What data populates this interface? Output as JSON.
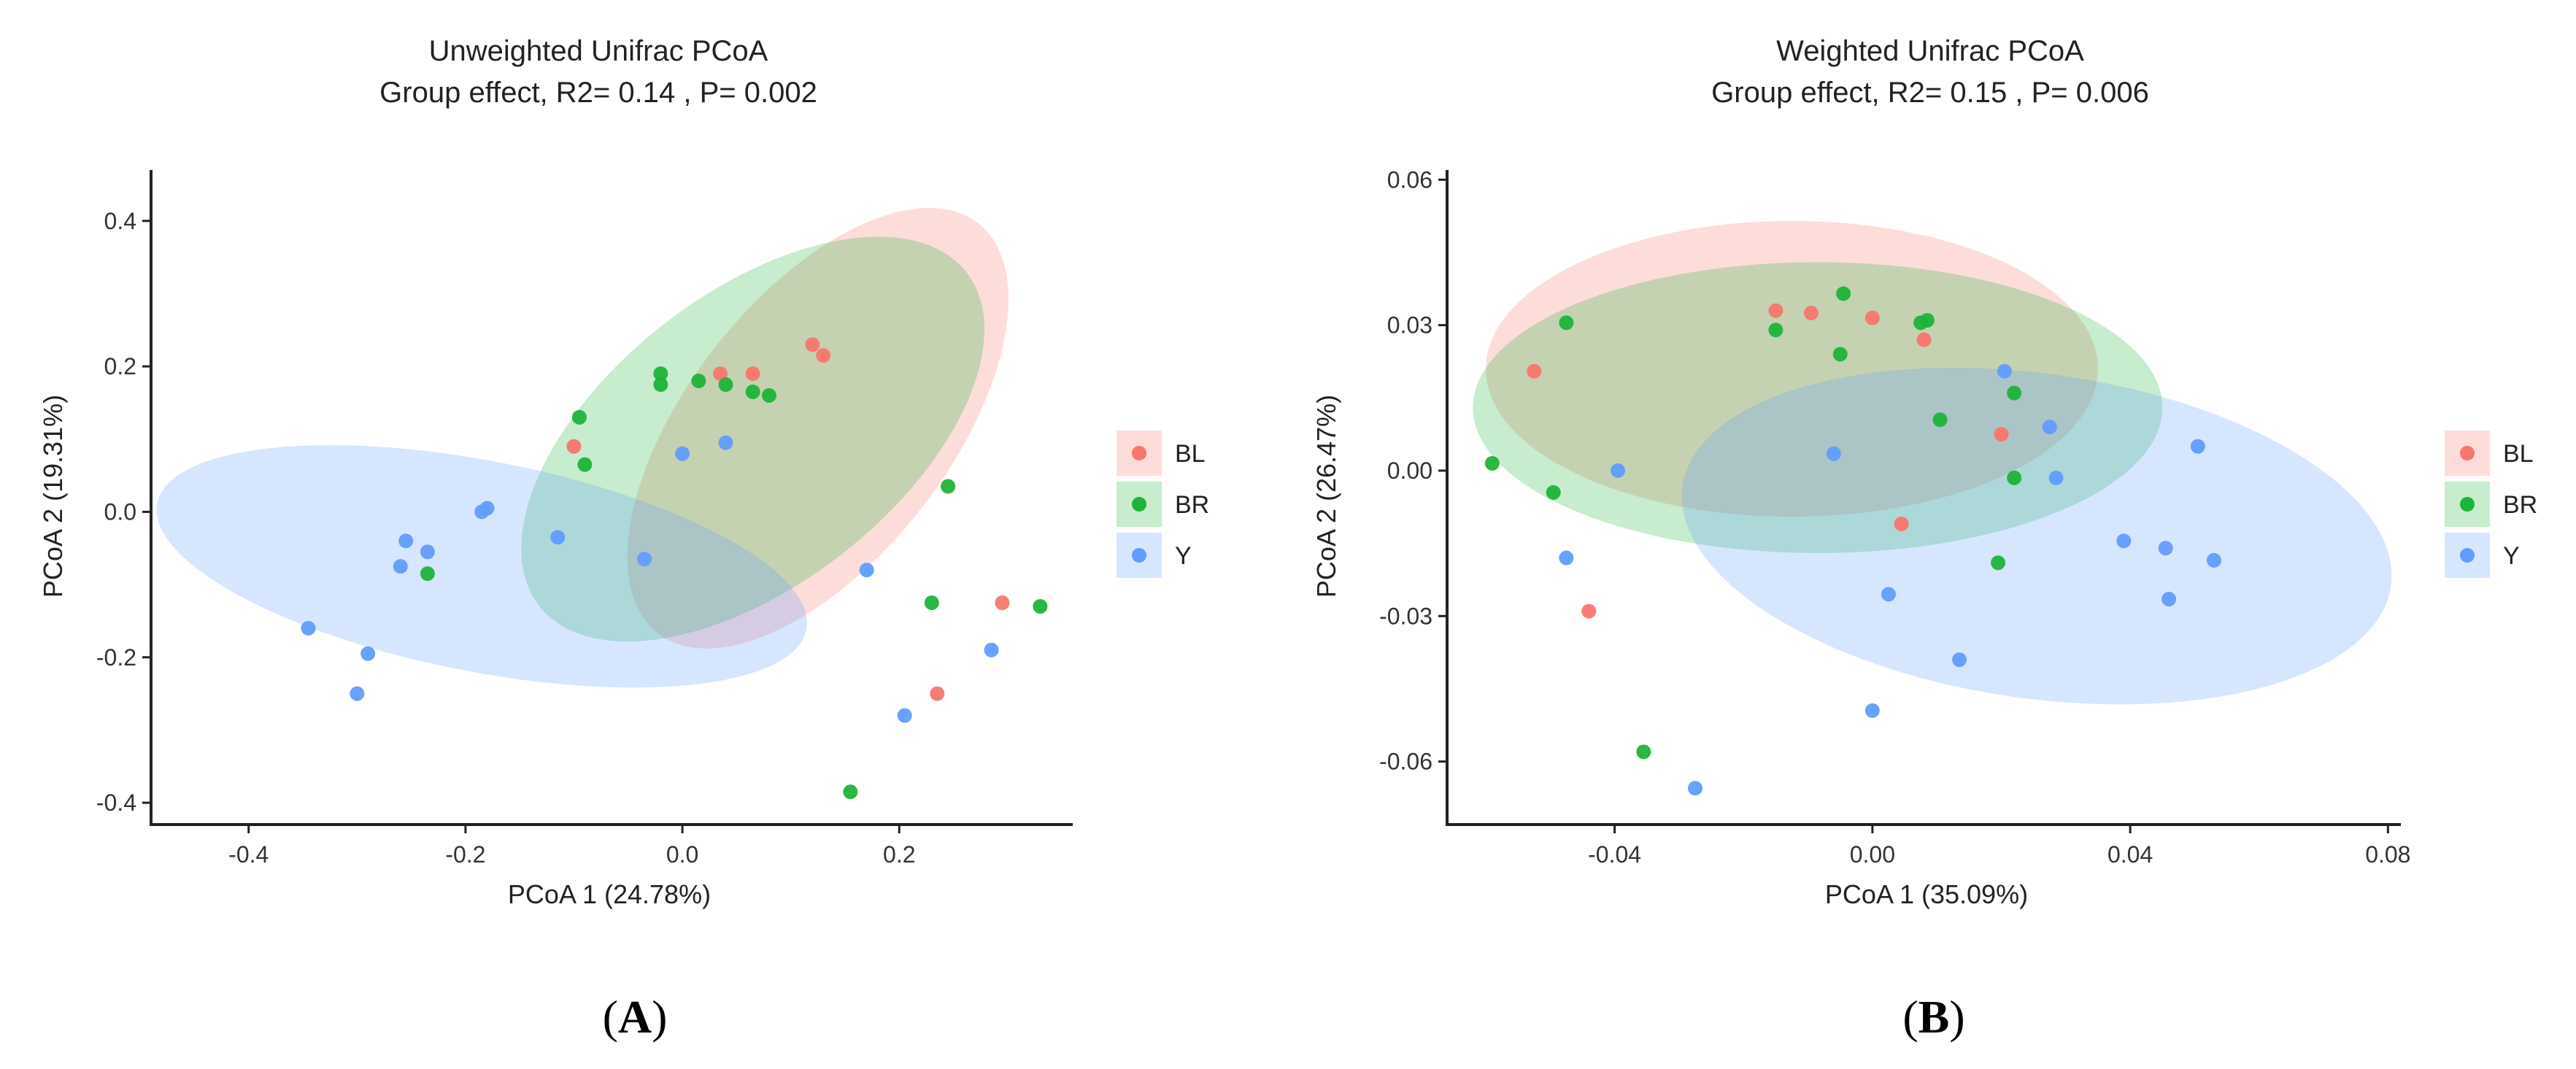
{
  "chart_data": [
    {
      "type": "scatter",
      "panel_label": [
        "(",
        "A",
        ")"
      ],
      "title": "Unweighted Unifrac  PCoA",
      "subtitle": "Group effect, R2= 0.14 , P= 0.002",
      "xlabel": "PCoA 1 (24.78%)",
      "ylabel": "PCoA 2 (19.31%)",
      "xlim": [
        -0.49,
        0.36
      ],
      "ylim": [
        -0.43,
        0.47
      ],
      "xticks": [
        -0.4,
        -0.2,
        0.0,
        0.2
      ],
      "xtick_labels": [
        "-0.4",
        "-0.2",
        "0.0",
        "0.2"
      ],
      "yticks": [
        -0.4,
        -0.2,
        0.0,
        0.2,
        0.4
      ],
      "ytick_labels": [
        "-0.4",
        "-0.2",
        "0.0",
        "0.2",
        "0.4"
      ],
      "grid": false,
      "legend_position": "right",
      "ellipses": [
        {
          "group": "BL",
          "cx": 0.125,
          "cy": 0.115,
          "rx": 0.24,
          "ry": 0.18,
          "angle": 52
        },
        {
          "group": "BR",
          "cx": 0.065,
          "cy": 0.1,
          "rx": 0.25,
          "ry": 0.2,
          "angle": 38
        },
        {
          "group": "Y",
          "cx": -0.185,
          "cy": -0.075,
          "rx": 0.305,
          "ry": 0.145,
          "angle": -11
        }
      ],
      "series": [
        {
          "name": "BL",
          "color": "#F8766D",
          "points": [
            [
              0.035,
              0.19
            ],
            [
              0.065,
              0.19
            ],
            [
              0.12,
              0.23
            ],
            [
              0.13,
              0.215
            ],
            [
              -0.1,
              0.09
            ],
            [
              0.295,
              -0.125
            ],
            [
              0.235,
              -0.25
            ]
          ]
        },
        {
          "name": "BR",
          "color": "#1FB33A",
          "points": [
            [
              -0.02,
              0.19
            ],
            [
              -0.02,
              0.175
            ],
            [
              0.015,
              0.18
            ],
            [
              0.04,
              0.175
            ],
            [
              0.065,
              0.165
            ],
            [
              0.08,
              0.16
            ],
            [
              -0.095,
              0.13
            ],
            [
              -0.09,
              0.065
            ],
            [
              -0.235,
              -0.085
            ],
            [
              0.245,
              0.035
            ],
            [
              0.23,
              -0.125
            ],
            [
              0.33,
              -0.13
            ],
            [
              0.155,
              -0.385
            ]
          ]
        },
        {
          "name": "Y",
          "color": "#619CFF",
          "points": [
            [
              -0.185,
              0.0
            ],
            [
              -0.18,
              0.005
            ],
            [
              -0.255,
              -0.04
            ],
            [
              -0.235,
              -0.055
            ],
            [
              -0.26,
              -0.075
            ],
            [
              -0.115,
              -0.035
            ],
            [
              -0.035,
              -0.065
            ],
            [
              0.0,
              0.08
            ],
            [
              0.04,
              0.095
            ],
            [
              0.17,
              -0.08
            ],
            [
              -0.345,
              -0.16
            ],
            [
              -0.29,
              -0.195
            ],
            [
              -0.3,
              -0.25
            ],
            [
              0.285,
              -0.19
            ],
            [
              0.205,
              -0.28
            ]
          ]
        }
      ],
      "legend": [
        "BL",
        "BR",
        "Y"
      ]
    },
    {
      "type": "scatter",
      "panel_label": [
        "(",
        "B",
        ")"
      ],
      "title": "Weighted Unifrac  PCoA",
      "subtitle": "Group effect, R2= 0.15 , P= 0.006",
      "xlabel": "PCoA 1 (35.09%)",
      "ylabel": "PCoA 2 (26.47%)",
      "xlim": [
        -0.066,
        0.082
      ],
      "ylim": [
        -0.073,
        0.062
      ],
      "xticks": [
        -0.04,
        0.0,
        0.04,
        0.08
      ],
      "xtick_labels": [
        "-0.04",
        "0.00",
        "0.04",
        "0.08"
      ],
      "yticks": [
        -0.06,
        -0.03,
        0.0,
        0.03,
        0.06
      ],
      "ytick_labels": [
        "-0.06",
        "-0.03",
        "0.00",
        "0.03",
        "0.06"
      ],
      "grid": false,
      "legend_position": "right",
      "ellipses": [
        {
          "group": "BL",
          "cx": -0.0125,
          "cy": 0.021,
          "rx": 0.0475,
          "ry": 0.0305,
          "angle": 0
        },
        {
          "group": "BR",
          "cx": -0.0085,
          "cy": 0.013,
          "rx": 0.0535,
          "ry": 0.03,
          "angle": 0
        },
        {
          "group": "Y",
          "cx": 0.0255,
          "cy": -0.0135,
          "rx": 0.0555,
          "ry": 0.0335,
          "angle": -8
        }
      ],
      "series": [
        {
          "name": "BL",
          "color": "#F8766D",
          "points": [
            [
              -0.015,
              0.033
            ],
            [
              -0.0095,
              0.0325
            ],
            [
              0.0,
              0.0315
            ],
            [
              0.008,
              0.027
            ],
            [
              -0.0525,
              0.0205
            ],
            [
              0.02,
              0.0075
            ],
            [
              0.0045,
              -0.011
            ],
            [
              -0.044,
              -0.029
            ]
          ]
        },
        {
          "name": "BR",
          "color": "#1FB33A",
          "points": [
            [
              -0.0045,
              0.0365
            ],
            [
              0.0085,
              0.031
            ],
            [
              0.0075,
              0.0305
            ],
            [
              -0.015,
              0.029
            ],
            [
              -0.005,
              0.024
            ],
            [
              -0.0475,
              0.0305
            ],
            [
              0.022,
              0.016
            ],
            [
              0.0105,
              0.0105
            ],
            [
              -0.059,
              0.0015
            ],
            [
              -0.0495,
              -0.0045
            ],
            [
              0.022,
              -0.0015
            ],
            [
              0.0195,
              -0.019
            ],
            [
              -0.0355,
              -0.058
            ]
          ]
        },
        {
          "name": "Y",
          "color": "#619CFF",
          "points": [
            [
              0.0205,
              0.0205
            ],
            [
              -0.0395,
              0.0
            ],
            [
              -0.006,
              0.0035
            ],
            [
              0.0275,
              0.009
            ],
            [
              0.0285,
              -0.0015
            ],
            [
              0.0505,
              0.005
            ],
            [
              -0.0475,
              -0.018
            ],
            [
              0.039,
              -0.0145
            ],
            [
              0.0455,
              -0.016
            ],
            [
              0.053,
              -0.0185
            ],
            [
              0.046,
              -0.0265
            ],
            [
              0.0025,
              -0.0255
            ],
            [
              0.0135,
              -0.039
            ],
            [
              0.0,
              -0.0495
            ],
            [
              -0.0275,
              -0.0655
            ]
          ]
        }
      ],
      "legend": [
        "BL",
        "BR",
        "Y"
      ]
    }
  ]
}
